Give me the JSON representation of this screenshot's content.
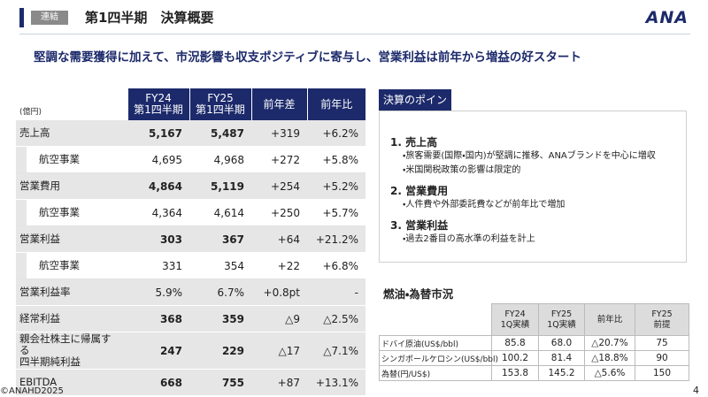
{
  "header": {
    "tag": "連結",
    "title": "第1四半期　決算概要",
    "logo": "ANA"
  },
  "headline": "堅調な需要獲得に加えて、市況影響も収支ポジティブに寄与し、営業利益は前年から増益の好スタート",
  "main_table": {
    "unit": "(億円)",
    "columns": [
      [
        "FY24",
        "第1四半期"
      ],
      [
        "FY25",
        "第1四半期"
      ],
      [
        "前年差"
      ],
      [
        "前年比"
      ]
    ],
    "rows": [
      {
        "label": [
          "売上高"
        ],
        "cells": [
          "5,167",
          "5,487",
          "+319",
          "+6.2%"
        ]
      },
      {
        "label": [
          "航空事業"
        ],
        "cells": [
          "4,695",
          "4,968",
          "+272",
          "+5.8%"
        ]
      },
      {
        "label": [
          "営業費用"
        ],
        "cells": [
          "4,864",
          "5,119",
          "+254",
          "+5.2%"
        ]
      },
      {
        "label": [
          "航空事業"
        ],
        "cells": [
          "4,364",
          "4,614",
          "+250",
          "+5.7%"
        ]
      },
      {
        "label": [
          "営業利益"
        ],
        "cells": [
          "303",
          "367",
          "+64",
          "+21.2%"
        ]
      },
      {
        "label": [
          "航空事業"
        ],
        "cells": [
          "331",
          "354",
          "+22",
          "+6.8%"
        ]
      },
      {
        "label": [
          "営業利益率"
        ],
        "cells": [
          "5.9%",
          "6.7%",
          "+0.8pt",
          "-"
        ]
      },
      {
        "label": [
          "経常利益"
        ],
        "cells": [
          "368",
          "359",
          "△9",
          "△2.5%"
        ]
      },
      {
        "label": [
          "親会社株主に帰属する",
          "四半期純利益"
        ],
        "cells": [
          "247",
          "229",
          "△17",
          "△7.1%"
        ]
      },
      {
        "label": [
          "EBITDA"
        ],
        "cells": [
          "668",
          "755",
          "+87",
          "+13.1%"
        ]
      }
    ]
  },
  "points": {
    "title": "決算のポイント",
    "items": [
      {
        "heading": "1. 売上高",
        "bullets": [
          "・旅客需要(国際・国内)が堅調に推移、ANAブランドを中心に増収",
          "・米国関税政策の影響は限定的"
        ]
      },
      {
        "heading": "2. 営業費用",
        "bullets": [
          "・人件費や外部委託費などが前年比で増加"
        ]
      },
      {
        "heading": "3. 営業利益",
        "bullets": [
          "・過去2番目の高水準の利益を計上"
        ]
      }
    ]
  },
  "fuel_table": {
    "title": "燃油・為替市況",
    "columns": [
      [
        "FY24",
        "1Q実績"
      ],
      [
        "FY25",
        "1Q実績"
      ],
      [
        "前年比"
      ],
      [
        "FY25",
        "前提"
      ]
    ],
    "rows": [
      {
        "label": "ドバイ原油(US$/bbl)",
        "cells": [
          "85.8",
          "68.0",
          "△20.7%",
          "75"
        ]
      },
      {
        "label": "シンガポールケロシン(US$/bbl)",
        "cells": [
          "100.2",
          "81.4",
          "△18.8%",
          "90"
        ]
      },
      {
        "label": "為替(円/US$)",
        "cells": [
          "153.8",
          "145.2",
          "△5.6%",
          "150"
        ]
      }
    ]
  },
  "footer": {
    "copyright": "©ANAHD2025",
    "page": "4"
  }
}
